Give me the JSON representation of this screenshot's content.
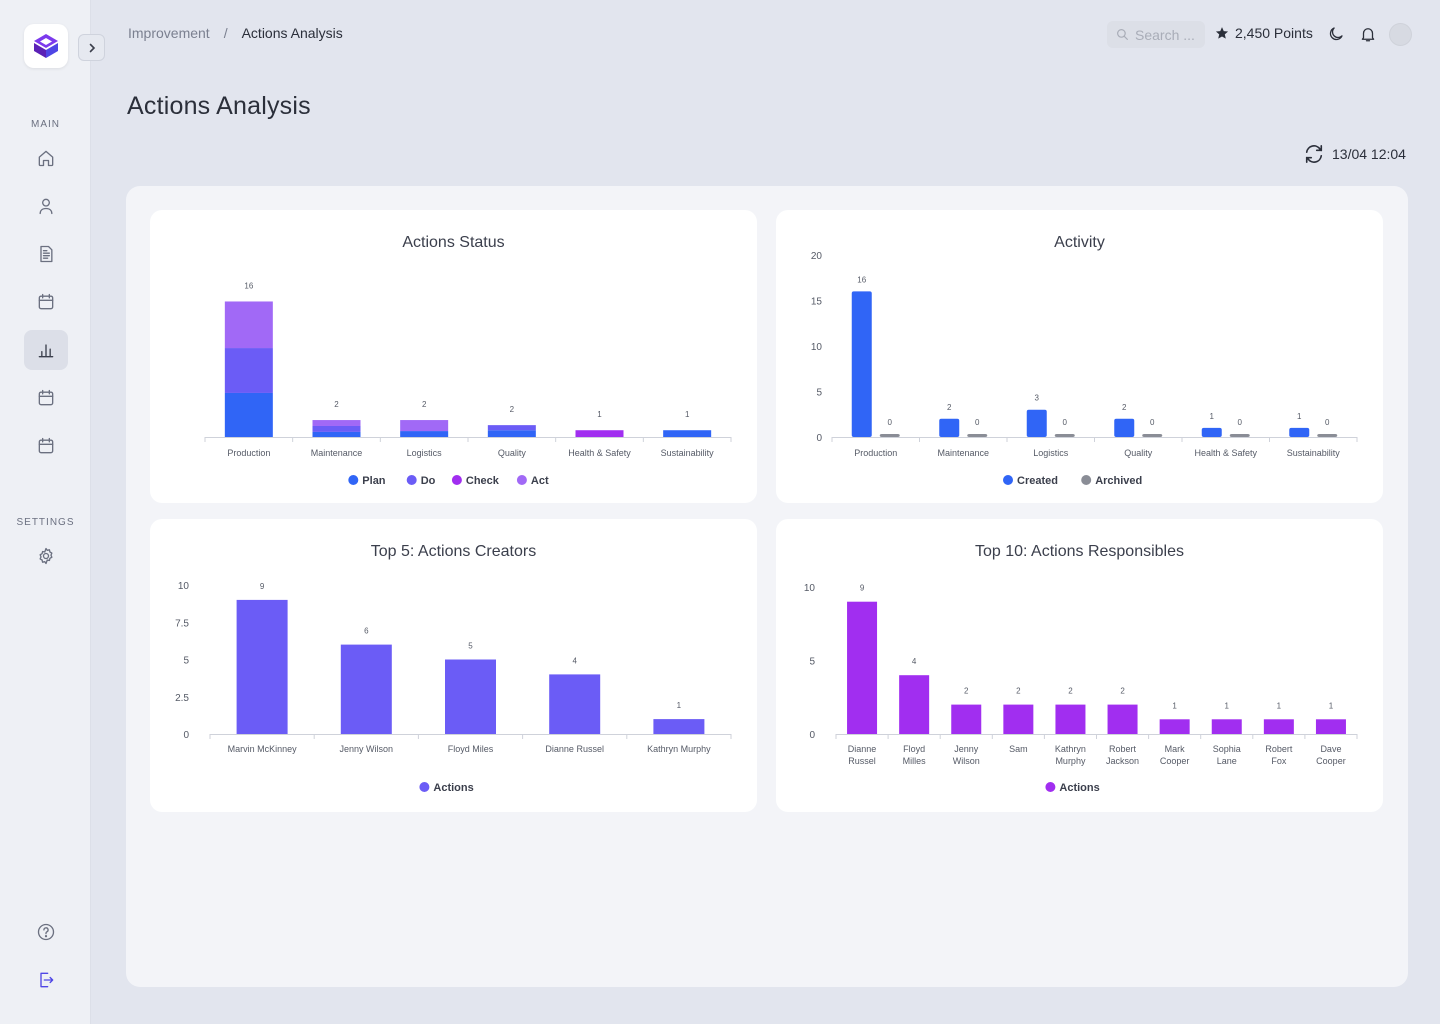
{
  "sidebar": {
    "main_label": "MAIN",
    "settings_label": "SETTINGS",
    "items": [
      {
        "name": "home-icon"
      },
      {
        "name": "user-icon"
      },
      {
        "name": "document-icon"
      },
      {
        "name": "calendar-icon"
      },
      {
        "name": "bar-chart-icon",
        "active": true
      },
      {
        "name": "calendar-icon"
      },
      {
        "name": "calendar-icon"
      }
    ]
  },
  "header": {
    "breadcrumb_parent": "Improvement",
    "breadcrumb_sep": "/",
    "breadcrumb_current": "Actions Analysis",
    "search_placeholder": "Search ...",
    "points": "2,450 Points"
  },
  "page": {
    "title": "Actions Analysis",
    "last_refresh": "13/04 12:04"
  },
  "colors": {
    "plan": "#3065f6",
    "do": "#6b5cf6",
    "check": "#a12ef0",
    "act": "#a169f6",
    "created": "#3065f6",
    "archived": "#8a8d96",
    "creators": "#6b5cf6",
    "responsibles": "#a12ef0"
  },
  "chart_data": [
    {
      "id": "status",
      "type": "bar",
      "stacked": true,
      "title": "Actions Status",
      "categories": [
        "Production",
        "Maintenance",
        "Logistics",
        "Quality",
        "Health & Safety",
        "Sustainability"
      ],
      "totals": [
        16,
        2,
        2,
        2,
        1,
        1
      ],
      "series": [
        {
          "name": "Plan",
          "color": "#3065f6",
          "values": [
            5.2,
            0.6,
            0.7,
            0.8,
            0,
            0.8
          ]
        },
        {
          "name": "Do",
          "color": "#6b5cf6",
          "values": [
            5.3,
            0.7,
            0,
            0.6,
            0,
            0
          ]
        },
        {
          "name": "Check",
          "color": "#a12ef0",
          "values": [
            0,
            0,
            0,
            0,
            0.8,
            0
          ]
        },
        {
          "name": "Act",
          "color": "#a169f6",
          "values": [
            5.5,
            0.7,
            1.3,
            0,
            0,
            0
          ]
        }
      ],
      "ylim": [
        0,
        17
      ]
    },
    {
      "id": "activity",
      "type": "bar",
      "title": "Activity",
      "categories": [
        "Production",
        "Maintenance",
        "Logistics",
        "Quality",
        "Health & Safety",
        "Sustainability"
      ],
      "series": [
        {
          "name": "Created",
          "color": "#3065f6",
          "values": [
            16,
            2,
            3,
            2,
            1,
            1
          ]
        },
        {
          "name": "Archived",
          "color": "#8a8d96",
          "values": [
            0,
            0,
            0,
            0,
            0,
            0
          ]
        }
      ],
      "yticks": [
        0,
        5,
        10,
        15,
        20
      ],
      "ylim": [
        0,
        20
      ]
    },
    {
      "id": "creators",
      "type": "bar",
      "title": "Top 5: Actions Creators",
      "categories": [
        "Marvin McKinney",
        "Jenny Wilson",
        "Floyd Miles",
        "Dianne Russel",
        "Kathryn Murphy"
      ],
      "series": [
        {
          "name": "Actions",
          "color": "#6b5cf6",
          "values": [
            9,
            6,
            5,
            4,
            1
          ]
        }
      ],
      "yticks": [
        "0",
        "2.5",
        "5",
        "7.5",
        "10"
      ],
      "ylim": [
        0,
        10
      ]
    },
    {
      "id": "responsibles",
      "type": "bar",
      "title": "Top 10: Actions Responsibles",
      "categories": [
        [
          "Dianne",
          "Russel"
        ],
        [
          "Floyd",
          "Milles"
        ],
        [
          "Jenny",
          "Wilson"
        ],
        [
          "Sam"
        ],
        [
          "Kathryn",
          "Murphy"
        ],
        [
          "Robert",
          "Jackson"
        ],
        [
          "Mark",
          "Cooper"
        ],
        [
          "Sophia",
          "Lane"
        ],
        [
          "Robert",
          "Fox"
        ],
        [
          "Dave",
          "Cooper"
        ]
      ],
      "series": [
        {
          "name": "Actions",
          "color": "#a12ef0",
          "values": [
            9,
            4,
            2,
            2,
            2,
            2,
            1,
            1,
            1,
            1
          ]
        }
      ],
      "yticks": [
        0,
        5,
        10
      ],
      "ylim": [
        0,
        10
      ]
    }
  ]
}
